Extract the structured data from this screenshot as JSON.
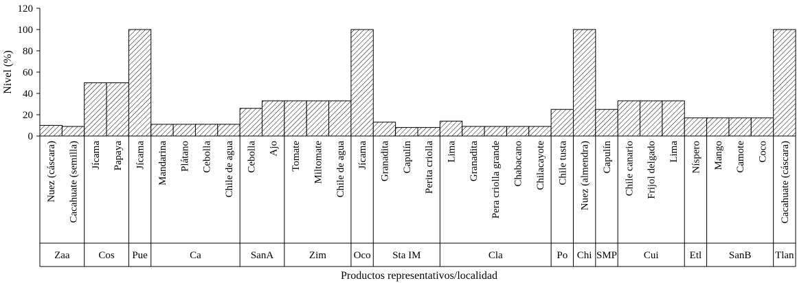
{
  "chart_data": {
    "type": "bar",
    "ylabel": "Nivel (%)",
    "xlabel": "Productos representativos/localidad",
    "ylim": [
      0,
      120
    ],
    "yticks": [
      "0",
      "20",
      "40",
      "60",
      "80",
      "100",
      "120"
    ],
    "grid": false,
    "bar_fill": "diagonal-hatch",
    "bars": [
      {
        "label": "Nuez (cáscara)",
        "value": 10
      },
      {
        "label": "Cacahuate (semilla)",
        "value": 9
      },
      {
        "label": "Jícama",
        "value": 50
      },
      {
        "label": "Papaya",
        "value": 50
      },
      {
        "label": "Jícama",
        "value": 100
      },
      {
        "label": "Mandarina",
        "value": 11
      },
      {
        "label": "Plátano",
        "value": 11
      },
      {
        "label": "Cebolla",
        "value": 11
      },
      {
        "label": "Chile de agua",
        "value": 11
      },
      {
        "label": "Cebolla",
        "value": 26
      },
      {
        "label": "Ajo",
        "value": 33
      },
      {
        "label": "Tomate",
        "value": 33
      },
      {
        "label": "Miltomate",
        "value": 33
      },
      {
        "label": "Chile de agua",
        "value": 33
      },
      {
        "label": "Jícama",
        "value": 100
      },
      {
        "label": "Granadita",
        "value": 13
      },
      {
        "label": "Capulín",
        "value": 8
      },
      {
        "label": "Perita criolla",
        "value": 8
      },
      {
        "label": "Lima",
        "value": 14
      },
      {
        "label": "Granadita",
        "value": 9
      },
      {
        "label": "Pera criolla grande",
        "value": 9
      },
      {
        "label": "Chabacano",
        "value": 9
      },
      {
        "label": "Chilacayote",
        "value": 9
      },
      {
        "label": "Chile tusta",
        "value": 25
      },
      {
        "label": "Nuez (almendra)",
        "value": 100
      },
      {
        "label": "Capulín",
        "value": 25
      },
      {
        "label": "Chile canario",
        "value": 33
      },
      {
        "label": "Frijol delgado",
        "value": 33
      },
      {
        "label": "Lima",
        "value": 33
      },
      {
        "label": "Níspero",
        "value": 17
      },
      {
        "label": "Mango",
        "value": 17
      },
      {
        "label": "Camote",
        "value": 17
      },
      {
        "label": "Coco",
        "value": 17
      },
      {
        "label": "Cacahuate (cáscara)",
        "value": 100
      }
    ],
    "groups": [
      {
        "label": "Zaa",
        "count": 2
      },
      {
        "label": "Cos",
        "count": 2
      },
      {
        "label": "Pue",
        "count": 1
      },
      {
        "label": "Ca",
        "count": 4
      },
      {
        "label": "SanA",
        "count": 2
      },
      {
        "label": "Zim",
        "count": 3
      },
      {
        "label": "Oco",
        "count": 1
      },
      {
        "label": "Sta IM",
        "count": 3
      },
      {
        "label": "Cla",
        "count": 5
      },
      {
        "label": "Po",
        "count": 1
      },
      {
        "label": "Chi",
        "count": 1
      },
      {
        "label": "SMP",
        "count": 1
      },
      {
        "label": "Cui",
        "count": 3
      },
      {
        "label": "Etl",
        "count": 1
      },
      {
        "label": "SanB",
        "count": 3
      },
      {
        "label": "Tlan",
        "count": 1
      }
    ]
  }
}
